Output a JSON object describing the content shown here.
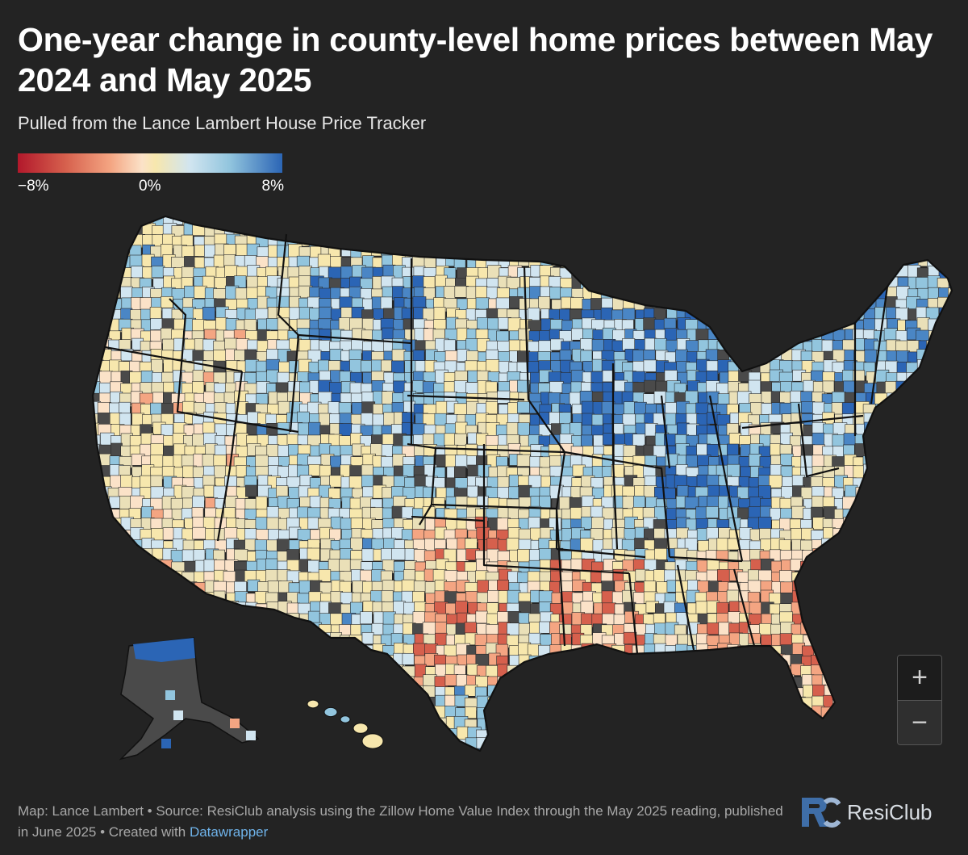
{
  "title": "One-year change in county-level home prices between May 2024 and May 2025",
  "subtitle": "Pulled from the Lance Lambert House Price Tracker",
  "legend": {
    "min_label": "−8%",
    "mid_label": "0%",
    "max_label": "8%"
  },
  "colors": {
    "background": "#232323",
    "strong_decline": "#b2182b",
    "decline": "#f4a582",
    "flat": "#f7e7ad",
    "gain": "#92c5de",
    "strong_gain": "#2b65b5",
    "no_data": "#4a4a4a"
  },
  "zoom": {
    "in_label": "+",
    "out_label": "−"
  },
  "footer": {
    "credit": "Map: Lance Lambert • Source: ResiClub analysis using the Zillow Home Value Index through the May 2025 reading, published in June 2025 • Created with",
    "link": "Datawrapper"
  },
  "brand": {
    "name": "ResiClub",
    "logo_icon": "resiclub-rc-logo"
  }
}
